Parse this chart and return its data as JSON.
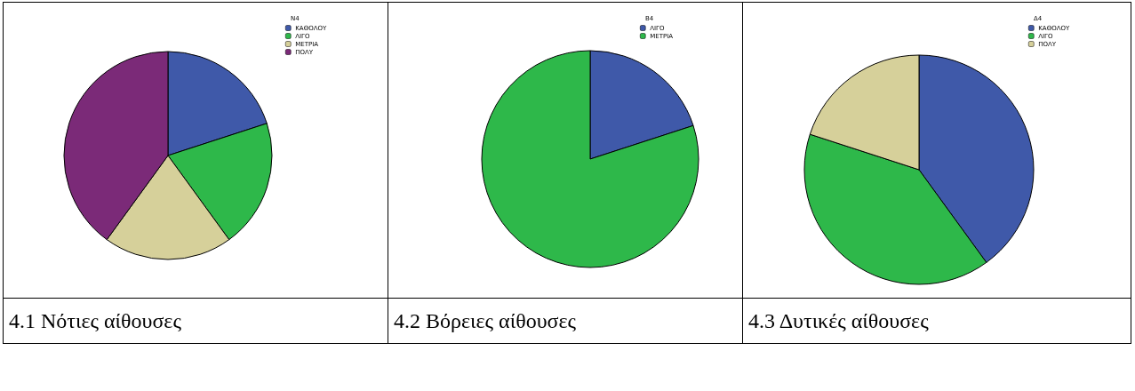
{
  "chart_data": [
    {
      "type": "pie",
      "legend_title": "Ν4",
      "categories": [
        "ΚΑΘΟΛΟΥ",
        "ΛΙΓΟ",
        "ΜΕΤΡΙΑ",
        "ΠΟΛΥ"
      ],
      "values": [
        20,
        20,
        20,
        40
      ],
      "colors": [
        "#3f59a9",
        "#2eb84a",
        "#d6d09a",
        "#7b2a78"
      ],
      "legend": "top right",
      "annotations": [
        "4.1 Νότιες αίθουσες"
      ]
    },
    {
      "type": "pie",
      "legend_title": "Β4",
      "categories": [
        "ΛΙΓΟ",
        "ΜΕΤΡΙΑ"
      ],
      "values": [
        20,
        80
      ],
      "colors": [
        "#3f59a9",
        "#2eb84a"
      ],
      "legend": "top right",
      "annotations": [
        "4.2 Βόρειες αίθουσες"
      ]
    },
    {
      "type": "pie",
      "legend_title": "Δ4",
      "categories": [
        "ΚΑΘΟΛΟΥ",
        "ΛΙΓΟ",
        "ΠΟΛΥ"
      ],
      "values": [
        40,
        40,
        20
      ],
      "colors": [
        "#3f59a9",
        "#2eb84a",
        "#d6d09a"
      ],
      "legend": "top right",
      "annotations": [
        "4.3 Δυτικές αίθουσες"
      ]
    }
  ]
}
